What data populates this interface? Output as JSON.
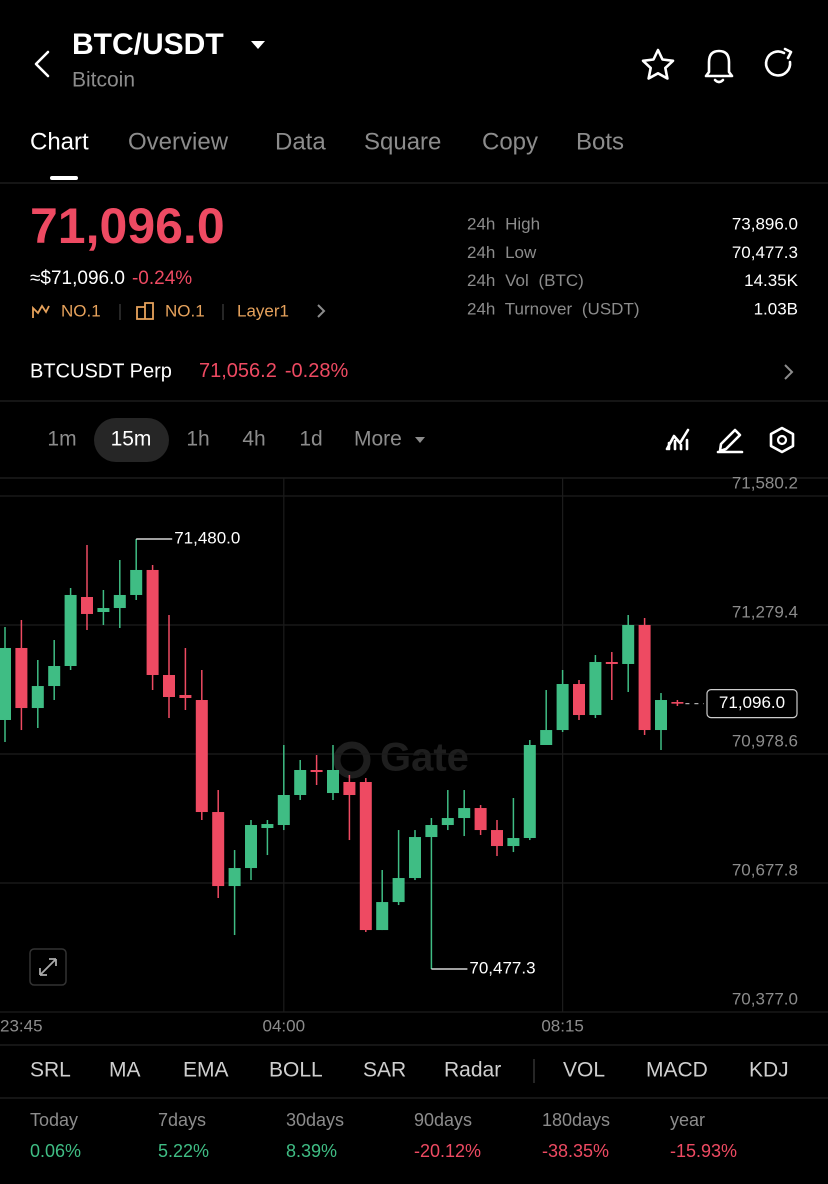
{
  "header": {
    "title": "BTC/USDT",
    "subtitle": "Bitcoin"
  },
  "tabs": [
    "Chart",
    "Overview",
    "Data",
    "Square",
    "Copy",
    "Bots"
  ],
  "price": {
    "last": "71,096.0",
    "fiat": "≈$71,096.0",
    "change": "-0.24%",
    "tags": [
      "NO.1",
      "NO.1",
      "Layer1"
    ]
  },
  "stats": [
    {
      "label": "24h High",
      "value": "73,896.0"
    },
    {
      "label": "24h Low",
      "value": "70,477.3"
    },
    {
      "label": "24h Vol (BTC)",
      "value": "14.35K"
    },
    {
      "label": "24h Turnover (USDT)",
      "value": "1.03B"
    }
  ],
  "perp": {
    "name": "BTCUSDT Perp",
    "price": "71,056.2",
    "change": "-0.28%"
  },
  "intervals": [
    "1m",
    "15m",
    "1h",
    "4h",
    "1d",
    "More"
  ],
  "chart_data": {
    "type": "candlestick",
    "watermark": "Gate",
    "up_color": "#3fbd84",
    "down_color": "#ee4a62",
    "grid": true,
    "ylim": [
      70377.0,
      71580.2
    ],
    "yticks": [
      {
        "value": 71580.2,
        "label": "71,580.2"
      },
      {
        "value": 71279.4,
        "label": "71,279.4"
      },
      {
        "value": 70978.6,
        "label": "70,978.6"
      },
      {
        "value": 70677.8,
        "label": "70,677.8"
      },
      {
        "value": 70377.0,
        "label": "70,377.0"
      }
    ],
    "high_label": "71,480.0",
    "low_label": "70,477.3",
    "last_label": "71,096.0",
    "categories": [
      "23:45",
      null,
      null,
      null,
      null,
      null,
      null,
      null,
      null,
      null,
      null,
      null,
      null,
      null,
      null,
      null,
      null,
      "04:00",
      null,
      null,
      null,
      null,
      null,
      null,
      null,
      null,
      null,
      null,
      null,
      null,
      null,
      null,
      null,
      null,
      "08:15",
      null,
      null,
      null,
      null,
      null,
      null,
      null
    ],
    "candles": [
      {
        "open": 71057.9,
        "high": 71274.7,
        "low": 71006.6,
        "close": 71225.8
      },
      {
        "open": 71225.8,
        "high": 71291.1,
        "low": 71034.5,
        "close": 71085.8
      },
      {
        "open": 71085.8,
        "high": 71197.8,
        "low": 71039.2,
        "close": 71137.1
      },
      {
        "open": 71137.1,
        "high": 71244.4,
        "low": 71104.5,
        "close": 71183.8
      },
      {
        "open": 71183.8,
        "high": 71365.7,
        "low": 71174.5,
        "close": 71349.4
      },
      {
        "open": 71344.7,
        "high": 71466.0,
        "low": 71267.7,
        "close": 71305.1
      },
      {
        "open": 71309.7,
        "high": 71361.0,
        "low": 71279.4,
        "close": 71319.0
      },
      {
        "open": 71319.0,
        "high": 71431.0,
        "low": 71272.4,
        "close": 71349.4
      },
      {
        "open": 71349.4,
        "high": 71480.0,
        "low": 71337.7,
        "close": 71407.7
      },
      {
        "open": 71407.7,
        "high": 71419.3,
        "low": 71127.8,
        "close": 71162.8
      },
      {
        "open": 71162.8,
        "high": 71302.7,
        "low": 71062.5,
        "close": 71111.5
      },
      {
        "open": 71116.2,
        "high": 71225.8,
        "low": 71081.2,
        "close": 71109.2
      },
      {
        "open": 71104.5,
        "high": 71174.5,
        "low": 70824.7,
        "close": 70843.3
      },
      {
        "open": 70843.3,
        "high": 70894.6,
        "low": 70642.8,
        "close": 70670.7
      },
      {
        "open": 70670.7,
        "high": 70754.7,
        "low": 70556.5,
        "close": 70712.7
      },
      {
        "open": 70712.7,
        "high": 70824.7,
        "low": 70684.7,
        "close": 70813.0
      },
      {
        "open": 70806.0,
        "high": 70824.7,
        "low": 70743.0,
        "close": 70815.3
      },
      {
        "open": 70813.0,
        "high": 70999.6,
        "low": 70801.3,
        "close": 70883.0
      },
      {
        "open": 70883.0,
        "high": 70964.6,
        "low": 70871.3,
        "close": 70941.3
      },
      {
        "open": 70941.3,
        "high": 70976.2,
        "low": 70906.3,
        "close": 70936.6
      },
      {
        "open": 70887.6,
        "high": 70999.6,
        "low": 70871.3,
        "close": 70941.3
      },
      {
        "open": 70913.3,
        "high": 70929.6,
        "low": 70778.0,
        "close": 70883.0
      },
      {
        "open": 70913.3,
        "high": 70922.6,
        "low": 70563.5,
        "close": 70568.1
      },
      {
        "open": 70568.1,
        "high": 70708.1,
        "low": 70568.1,
        "close": 70633.4
      },
      {
        "open": 70633.4,
        "high": 70801.3,
        "low": 70626.4,
        "close": 70689.4
      },
      {
        "open": 70689.4,
        "high": 70801.3,
        "low": 70684.7,
        "close": 70785.0
      },
      {
        "open": 70785.0,
        "high": 70829.3,
        "low": 70477.3,
        "close": 70813.0
      },
      {
        "open": 70813.0,
        "high": 70894.6,
        "low": 70801.3,
        "close": 70829.3
      },
      {
        "open": 70829.3,
        "high": 70894.6,
        "low": 70787.3,
        "close": 70852.6
      },
      {
        "open": 70852.6,
        "high": 70859.6,
        "low": 70789.7,
        "close": 70801.3
      },
      {
        "open": 70801.3,
        "high": 70824.7,
        "low": 70740.7,
        "close": 70764.0
      },
      {
        "open": 70764.0,
        "high": 70876.0,
        "low": 70750.0,
        "close": 70782.7
      },
      {
        "open": 70782.7,
        "high": 71011.2,
        "low": 70778.0,
        "close": 70999.6
      },
      {
        "open": 70999.6,
        "high": 71127.8,
        "low": 70999.6,
        "close": 71034.5
      },
      {
        "open": 71034.5,
        "high": 71174.5,
        "low": 71029.9,
        "close": 71141.8
      },
      {
        "open": 71141.8,
        "high": 71151.1,
        "low": 71057.9,
        "close": 71069.5
      },
      {
        "open": 71069.5,
        "high": 71209.4,
        "low": 71062.5,
        "close": 71193.1
      },
      {
        "open": 71193.1,
        "high": 71216.4,
        "low": 71104.5,
        "close": 71188.5
      },
      {
        "open": 71188.5,
        "high": 71302.7,
        "low": 71123.2,
        "close": 71279.4
      },
      {
        "open": 71279.4,
        "high": 71295.7,
        "low": 71022.9,
        "close": 71034.5
      },
      {
        "open": 71034.5,
        "high": 71120.8,
        "low": 70987.9,
        "close": 71104.5
      },
      {
        "open": 71099.8,
        "high": 71104.5,
        "low": 71090.5,
        "close": 71096.0
      }
    ]
  },
  "indicators": [
    "SRL",
    "MA",
    "EMA",
    "BOLL",
    "SAR",
    "Radar",
    "VOL",
    "MACD",
    "KDJ"
  ],
  "performance": [
    {
      "period": "Today",
      "change": "0.06%"
    },
    {
      "period": "7days",
      "change": "5.22%"
    },
    {
      "period": "30days",
      "change": "8.39%"
    },
    {
      "period": "90days",
      "change": "-20.12%"
    },
    {
      "period": "180days",
      "change": "-38.35%"
    },
    {
      "period": "year",
      "change": "-15.93%"
    }
  ]
}
